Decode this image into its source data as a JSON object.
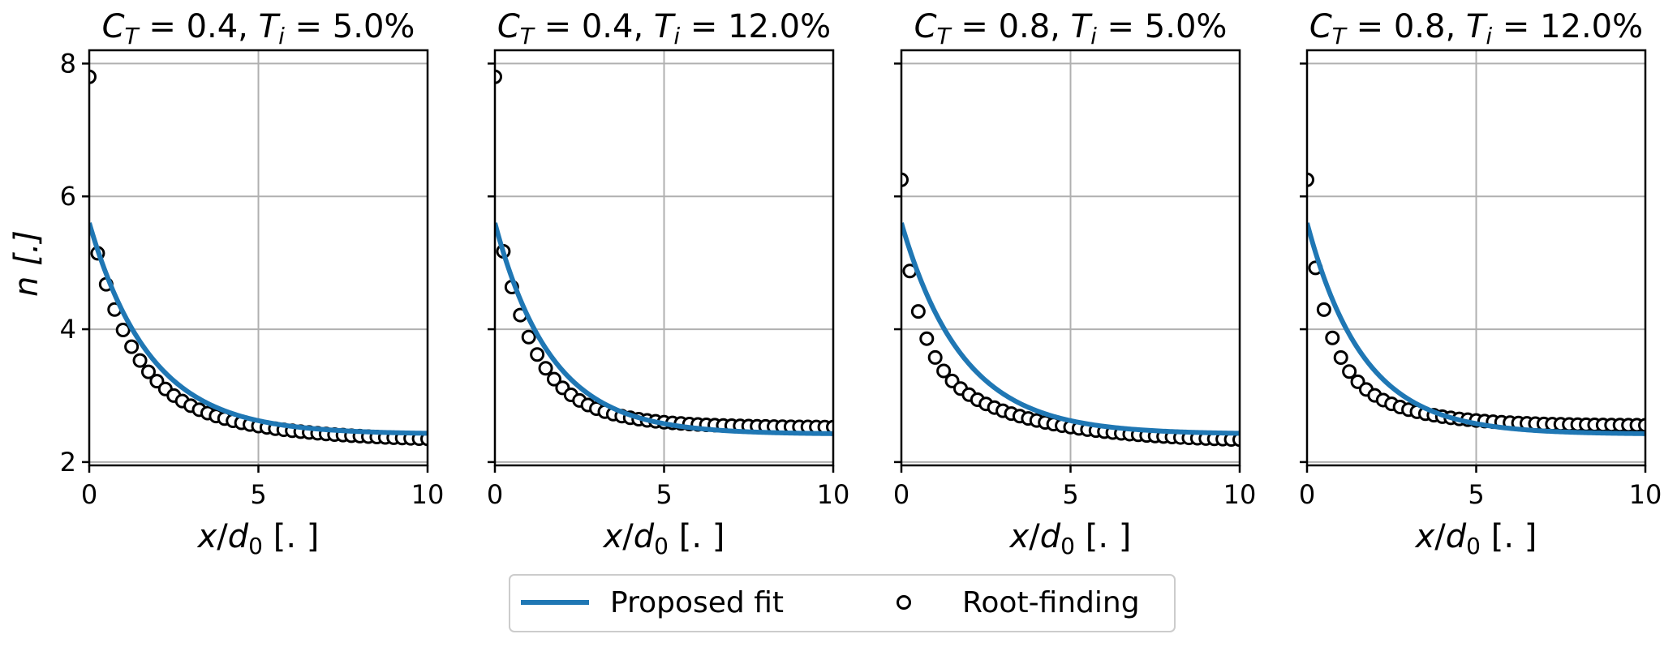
{
  "chart_data": {
    "type": "line",
    "layout": "1x4 panels, shared y-axis",
    "ylabel": "n [.]",
    "ylim": [
      1.95,
      8.2
    ],
    "yticks": [
      2,
      4,
      6,
      8
    ],
    "xlim": [
      0,
      10
    ],
    "xticks": [
      0,
      5,
      10
    ],
    "grid": true,
    "legend": {
      "position": "bottom-center",
      "entries": [
        {
          "label": "Proposed fit",
          "kind": "line",
          "color": "#1f77b4"
        },
        {
          "label": "Root-finding",
          "kind": "marker",
          "marker": "open-circle",
          "color": "#000000"
        }
      ]
    },
    "panels": [
      {
        "title_ct": "0.4",
        "title_ti": "5.0",
        "xlabel": "x/d0 [.]",
        "fit": {
          "n0": 5.6,
          "ninf": 2.42,
          "k": 0.55
        },
        "root": {
          "ninf": 2.3,
          "a": 2.44,
          "k1": 0.93,
          "b": 0.98,
          "k2": 0.3,
          "n_x0": 7.8
        }
      },
      {
        "title_ct": "0.4",
        "title_ti": "12.0",
        "xlabel": "x/d0 [.]",
        "fit": {
          "n0": 5.6,
          "ninf": 2.42,
          "k": 0.6
        },
        "root": {
          "ninf": 2.52,
          "a": 2.64,
          "k1": 1.05,
          "b": 0.7,
          "k2": 0.47,
          "n_x0": 7.8
        }
      },
      {
        "title_ct": "0.8",
        "title_ti": "5.0",
        "xlabel": "x/d0 [.]",
        "fit": {
          "n0": 5.6,
          "ninf": 2.42,
          "k": 0.55
        },
        "root": {
          "ninf": 2.3,
          "a": 2.13,
          "k1": 1.9,
          "b": 1.37,
          "k2": 0.36,
          "n_x0": 6.25
        }
      },
      {
        "title_ct": "0.8",
        "title_ti": "12.0",
        "xlabel": "x/d0 [.]",
        "fit": {
          "n0": 5.6,
          "ninf": 2.42,
          "k": 0.6
        },
        "root": {
          "ninf": 2.55,
          "a": 2.07,
          "k1": 1.9,
          "b": 1.25,
          "k2": 0.56,
          "n_x0": 6.25
        }
      }
    ]
  }
}
